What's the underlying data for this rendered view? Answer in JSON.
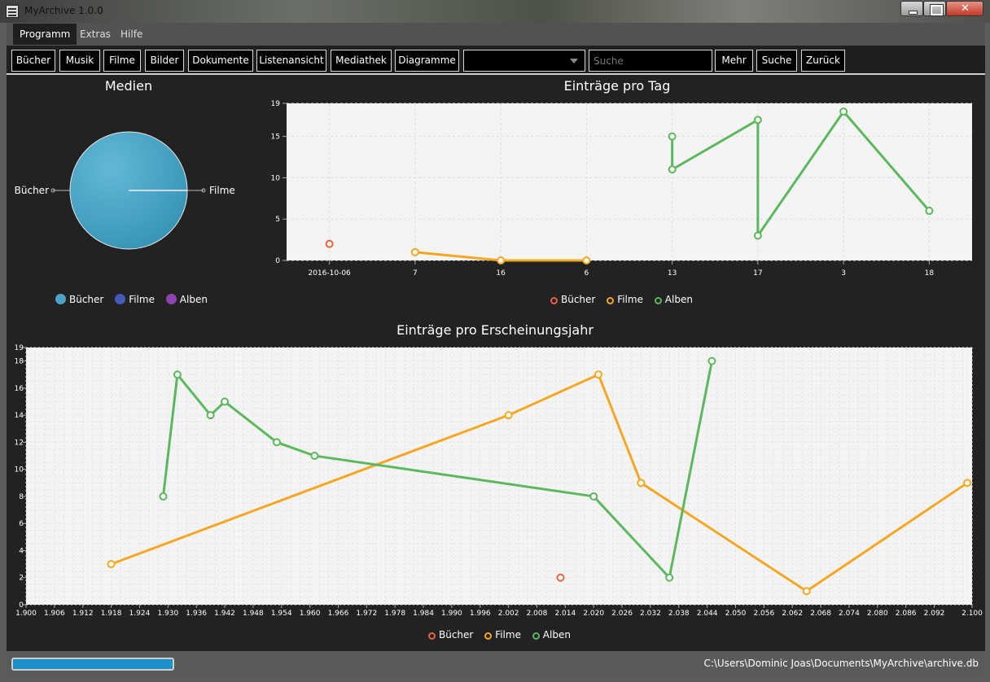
{
  "window": {
    "title": "MyArchive 1.0.0"
  },
  "menu": {
    "items": [
      "Programm",
      "Extras",
      "Hilfe"
    ]
  },
  "toolbar": {
    "buttons": [
      "Bücher",
      "Musik",
      "Filme",
      "Bilder",
      "Dokumente",
      "Listenansicht",
      "Mediathek",
      "Diagramme"
    ],
    "combo_value": "",
    "search_placeholder": "Suche",
    "more": "Mehr",
    "search": "Suche",
    "back": "Zurück"
  },
  "colors": {
    "books": "#e9633f",
    "movies": "#f5a623",
    "albums": "#5cb85c",
    "pie_books": "#4aa3c4",
    "pie_movies": "#4459b9",
    "pie_albums": "#8e44ad"
  },
  "chart_data": [
    {
      "type": "pie",
      "title": "Medien",
      "slices": [
        {
          "label": "Bücher",
          "value": 1
        },
        {
          "label": "Filme",
          "value": 0
        }
      ],
      "legend": [
        "Bücher",
        "Filme",
        "Alben"
      ],
      "legend_position": "bottom"
    },
    {
      "type": "line",
      "title": "Einträge pro Tag",
      "categories": [
        "2016-10-06",
        "7",
        "16",
        "6",
        "13",
        "17",
        "3",
        "18"
      ],
      "ylim": [
        0,
        19
      ],
      "yticks": [
        0,
        5,
        10,
        15,
        19
      ],
      "grid": true,
      "legend_position": "bottom",
      "series": [
        {
          "name": "Bücher",
          "points": [
            [
              "2016-10-06",
              2
            ]
          ]
        },
        {
          "name": "Filme",
          "points": [
            [
              "7",
              1
            ],
            [
              "16",
              0
            ],
            [
              "6",
              0
            ]
          ]
        },
        {
          "name": "Alben",
          "points": [
            [
              "13",
              15
            ],
            [
              "13",
              11
            ],
            [
              "17",
              17
            ],
            [
              "17",
              3
            ],
            [
              "3",
              18
            ],
            [
              "18",
              6
            ]
          ]
        }
      ]
    },
    {
      "type": "line",
      "title": "Einträge pro Erscheinungsjahr",
      "xlim": [
        1.9,
        2.1
      ],
      "ylim": [
        0,
        19
      ],
      "xticks": [
        "1.900",
        "1.906",
        "1.912",
        "1.918",
        "1.924",
        "1.930",
        "1.936",
        "1.942",
        "1.948",
        "1.954",
        "1.960",
        "1.966",
        "1.972",
        "1.978",
        "1.984",
        "1.990",
        "1.996",
        "2.002",
        "2.008",
        "2.014",
        "2.020",
        "2.026",
        "2.032",
        "2.038",
        "2.044",
        "2.050",
        "2.056",
        "2.062",
        "2.068",
        "2.074",
        "2.080",
        "2.086",
        "2.092",
        "2.100"
      ],
      "yticks": [
        0,
        2,
        4,
        6,
        8,
        10,
        12,
        14,
        16,
        18,
        19
      ],
      "grid": true,
      "legend_position": "bottom",
      "series": [
        {
          "name": "Bücher",
          "x": [
            2.013
          ],
          "y": [
            2
          ]
        },
        {
          "name": "Filme",
          "x": [
            1.918,
            2.002,
            2.021,
            2.03,
            2.065,
            2.099
          ],
          "y": [
            3,
            14,
            17,
            9,
            1,
            9
          ]
        },
        {
          "name": "Alben",
          "x": [
            1.929,
            1.932,
            1.939,
            1.942,
            1.953,
            1.961,
            2.02,
            2.036,
            2.045
          ],
          "y": [
            8,
            17,
            14,
            15,
            12,
            11,
            8,
            2,
            18
          ]
        }
      ]
    }
  ],
  "status": {
    "progress": 1.0,
    "db_path": "C:\\Users\\Dominic Joas\\Documents\\MyArchive\\archive.db"
  }
}
